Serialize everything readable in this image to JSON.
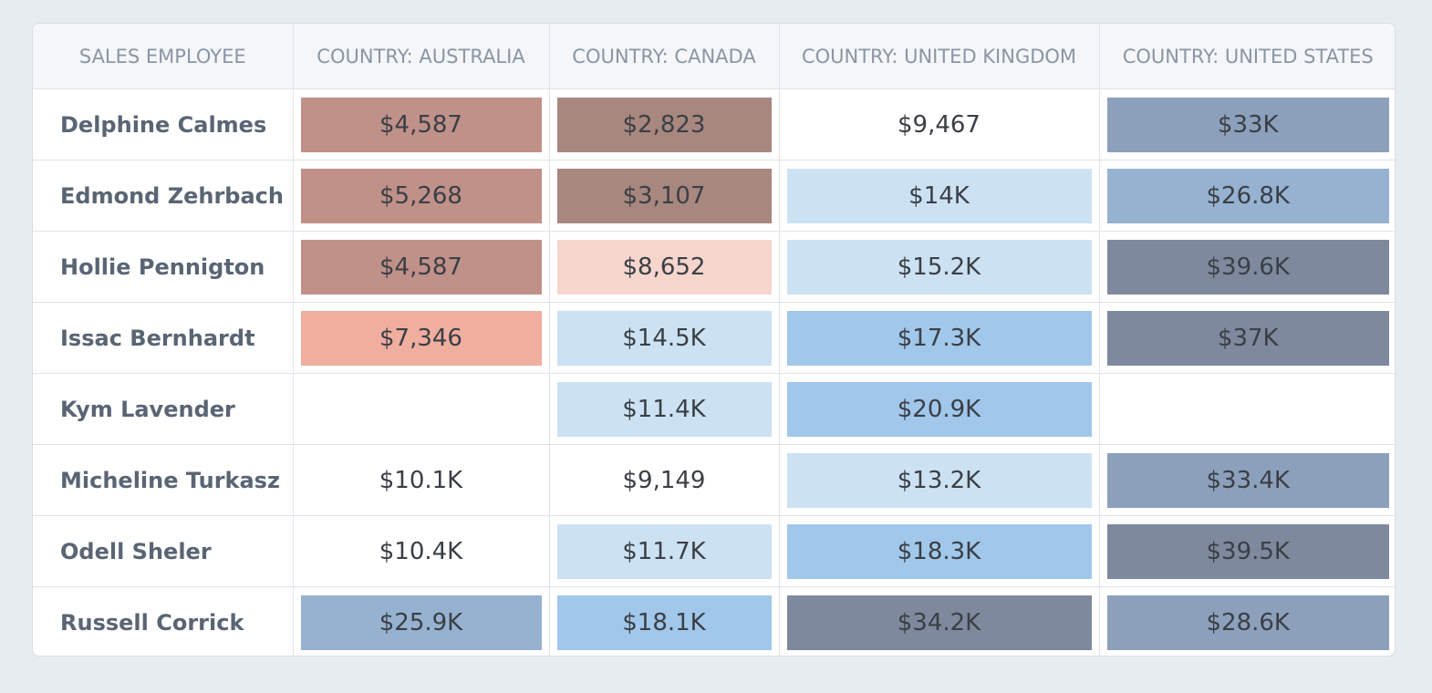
{
  "headers": [
    "SALES EMPLOYEE",
    "COUNTRY: AUSTRALIA",
    "COUNTRY: CANADA",
    "COUNTRY: UNITED KINGDOM",
    "COUNTRY: UNITED STATES"
  ],
  "colors": {
    "bg_rose_mid": "#c09189",
    "bg_rose_dark": "#a8877f",
    "bg_rose_light": "#f6d5cd",
    "bg_salmon": "#f0ae9f",
    "bg_blue_pale": "#cce2f3",
    "bg_blue_light": "#a1c7ea",
    "bg_steel_mid": "#96b2d0",
    "bg_steel": "#8ca0bb",
    "bg_slate": "#7f899d",
    "none": "transparent"
  },
  "rows": [
    {
      "name": "Delphine Calmes",
      "cells": [
        {
          "value": "$4,587",
          "bg": "bg_rose_mid"
        },
        {
          "value": "$2,823",
          "bg": "bg_rose_dark"
        },
        {
          "value": "$9,467",
          "bg": "none"
        },
        {
          "value": "$33K",
          "bg": "bg_steel"
        }
      ]
    },
    {
      "name": "Edmond Zehrbach",
      "cells": [
        {
          "value": "$5,268",
          "bg": "bg_rose_mid"
        },
        {
          "value": "$3,107",
          "bg": "bg_rose_dark"
        },
        {
          "value": "$14K",
          "bg": "bg_blue_pale"
        },
        {
          "value": "$26.8K",
          "bg": "bg_steel_mid"
        }
      ]
    },
    {
      "name": "Hollie Pennigton",
      "cells": [
        {
          "value": "$4,587",
          "bg": "bg_rose_mid"
        },
        {
          "value": "$8,652",
          "bg": "bg_rose_light"
        },
        {
          "value": "$15.2K",
          "bg": "bg_blue_pale"
        },
        {
          "value": "$39.6K",
          "bg": "bg_slate"
        }
      ]
    },
    {
      "name": "Issac Bernhardt",
      "cells": [
        {
          "value": "$7,346",
          "bg": "bg_salmon"
        },
        {
          "value": "$14.5K",
          "bg": "bg_blue_pale"
        },
        {
          "value": "$17.3K",
          "bg": "bg_blue_light"
        },
        {
          "value": "$37K",
          "bg": "bg_slate"
        }
      ]
    },
    {
      "name": "Kym Lavender",
      "cells": [
        {
          "value": "",
          "bg": "none"
        },
        {
          "value": "$11.4K",
          "bg": "bg_blue_pale"
        },
        {
          "value": "$20.9K",
          "bg": "bg_blue_light"
        },
        {
          "value": "",
          "bg": "none"
        }
      ]
    },
    {
      "name": "Micheline Turkasz",
      "cells": [
        {
          "value": "$10.1K",
          "bg": "none"
        },
        {
          "value": "$9,149",
          "bg": "none"
        },
        {
          "value": "$13.2K",
          "bg": "bg_blue_pale"
        },
        {
          "value": "$33.4K",
          "bg": "bg_steel"
        }
      ]
    },
    {
      "name": "Odell Sheler",
      "cells": [
        {
          "value": "$10.4K",
          "bg": "none"
        },
        {
          "value": "$11.7K",
          "bg": "bg_blue_pale"
        },
        {
          "value": "$18.3K",
          "bg": "bg_blue_light"
        },
        {
          "value": "$39.5K",
          "bg": "bg_slate"
        }
      ]
    },
    {
      "name": "Russell Corrick",
      "cells": [
        {
          "value": "$25.9K",
          "bg": "bg_steel_mid"
        },
        {
          "value": "$18.1K",
          "bg": "bg_blue_light"
        },
        {
          "value": "$34.2K",
          "bg": "bg_slate"
        },
        {
          "value": "$28.6K",
          "bg": "bg_steel"
        }
      ]
    }
  ]
}
